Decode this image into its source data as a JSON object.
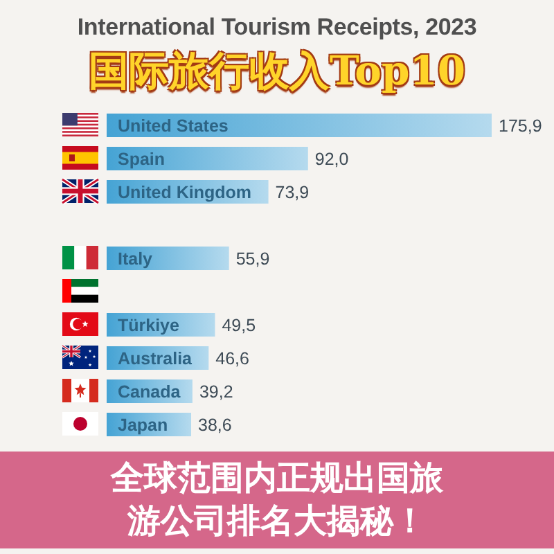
{
  "chart_data": {
    "type": "bar",
    "orientation": "horizontal",
    "title": "International Tourism Receipts, 2023",
    "subtitle": "国际旅行收入Top10",
    "categories": [
      "United States",
      "Spain",
      "United Kingdom",
      null,
      "Italy",
      null,
      "Türkiye",
      "Australia",
      "Canada",
      "Japan"
    ],
    "values": [
      175.9,
      92.0,
      73.9,
      null,
      55.9,
      null,
      49.5,
      46.6,
      39.2,
      38.6
    ],
    "value_labels": [
      "175,9",
      "92,0",
      "73,9",
      null,
      "55,9",
      null,
      "49,5",
      "46,6",
      "39,2",
      "38,6"
    ],
    "color": "#45a3d4",
    "annotations": [
      "全球范围内正规出国旅游公司排名大揭秘！"
    ]
  }
}
